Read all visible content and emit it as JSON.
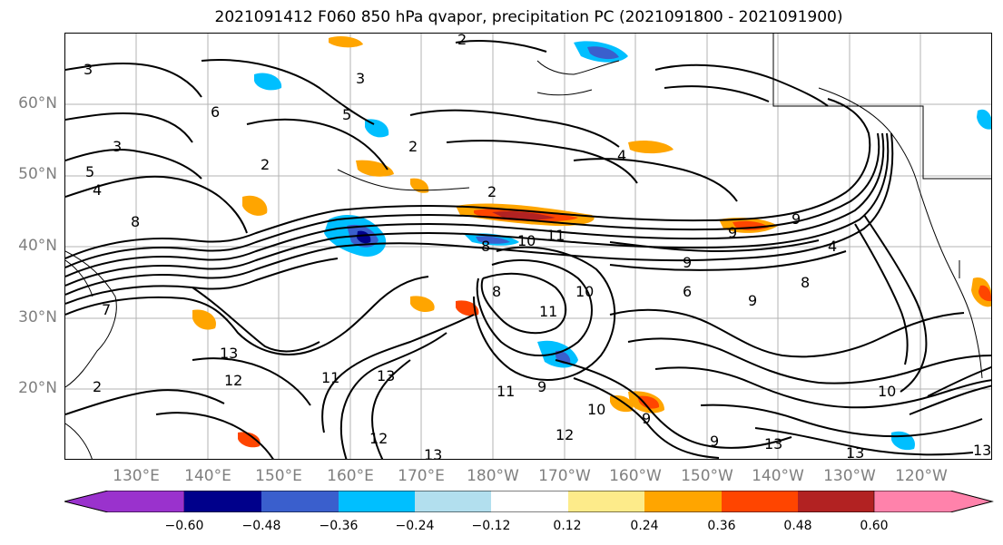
{
  "title": "2021091412 F060 850 hPa qvapor, precipitation PC (2021091800 - 2021091900)",
  "map": {
    "lat_labels": [
      "60°N",
      "50°N",
      "40°N",
      "30°N",
      "20°N"
    ],
    "lon_labels": [
      "130°E",
      "140°E",
      "150°E",
      "160°E",
      "170°E",
      "180°W",
      "170°W",
      "160°W",
      "150°W",
      "140°W",
      "130°W",
      "120°W"
    ],
    "contour_labels": [
      "2",
      "3",
      "3",
      "3",
      "5",
      "5",
      "4",
      "2",
      "2",
      "4",
      "2",
      "8",
      "8",
      "10",
      "11",
      "9",
      "9",
      "9",
      "9",
      "9",
      "8",
      "10",
      "11",
      "13",
      "12",
      "11",
      "13",
      "12",
      "12",
      "13",
      "13",
      "13",
      "13",
      "2",
      "10",
      "11",
      "10",
      "9",
      "9",
      "8",
      "7",
      "6",
      "4",
      "6"
    ]
  },
  "colorbar": {
    "ticks": [
      "−0.60",
      "−0.48",
      "−0.36",
      "−0.24",
      "−0.12",
      "0.12",
      "0.24",
      "0.36",
      "0.48",
      "0.60"
    ],
    "colors": [
      "#9a32cd",
      "#00008b",
      "#3a5fcd",
      "#00bfff",
      "#b2dfee",
      "#ffffff",
      "#fdeb8a",
      "#ffa500",
      "#ff4500",
      "#b22222",
      "#ff82ab"
    ]
  },
  "chart_data": {
    "type": "heatmap",
    "title": "2021091412 F060 850 hPa qvapor, precipitation PC (2021091800 - 2021091900)",
    "x_ticks": [
      "130°E",
      "140°E",
      "150°E",
      "160°E",
      "170°E",
      "180°W",
      "170°W",
      "160°W",
      "150°W",
      "140°W",
      "130°W",
      "120°W"
    ],
    "y_ticks": [
      "20°N",
      "30°N",
      "40°N",
      "50°N",
      "60°N"
    ],
    "colorbar_ticks": [
      -0.6,
      -0.48,
      -0.36,
      -0.24,
      -0.12,
      0.12,
      0.24,
      0.36,
      0.48,
      0.6
    ],
    "contour_values": [
      2,
      3,
      4,
      5,
      6,
      7,
      8,
      9,
      10,
      11,
      12,
      13
    ],
    "grid": true
  }
}
